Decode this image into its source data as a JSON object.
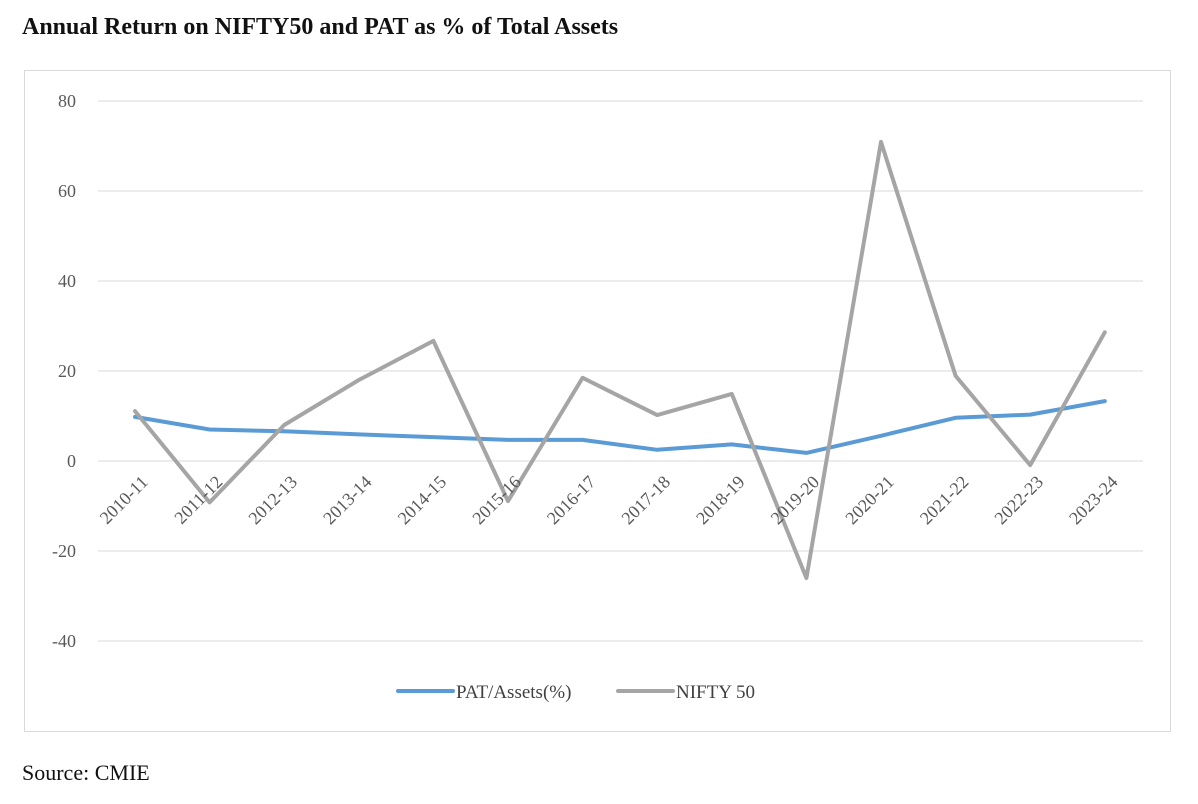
{
  "page": {
    "source": "Source: CMIE"
  },
  "chart_data": {
    "type": "line",
    "title": "Annual Return on NIFTY50 and PAT as % of Total Assets",
    "xlabel": "",
    "ylabel": "",
    "ylim": [
      -40,
      80
    ],
    "yticks": [
      80,
      60,
      40,
      20,
      0,
      -20,
      -40
    ],
    "grid": true,
    "legend_position": "bottom",
    "categories": [
      "2010-11",
      "2011-12",
      "2012-13",
      "2013-14",
      "2014-15",
      "2015-16",
      "2016-17",
      "2017-18",
      "2018-19",
      "2019-20",
      "2020-21",
      "2021-22",
      "2022-23",
      "2023-24"
    ],
    "series": [
      {
        "name": "PAT/Assets(%)",
        "color": "#5b9bd5",
        "values": [
          9.8,
          7.0,
          6.6,
          5.9,
          5.3,
          4.7,
          4.7,
          2.5,
          3.7,
          1.8,
          5.6,
          9.6,
          10.3,
          13.3
        ]
      },
      {
        "name": "NIFTY 50",
        "color": "#a5a5a5",
        "values": [
          11.1,
          -9.2,
          8.0,
          18.0,
          26.7,
          -8.9,
          18.5,
          10.2,
          14.9,
          -26.0,
          70.9,
          18.9,
          -0.9,
          28.6
        ]
      }
    ]
  }
}
